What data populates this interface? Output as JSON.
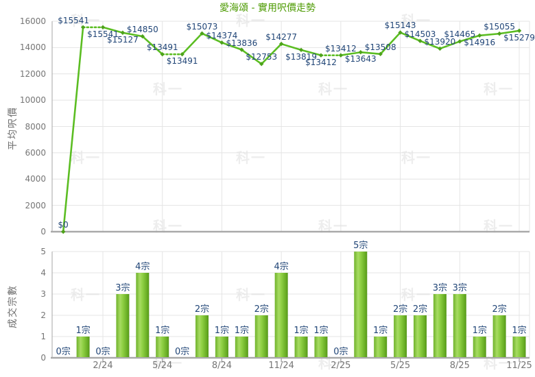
{
  "title": "愛海頌 - 實用呎價走勢",
  "watermark_text": "科一",
  "colors": {
    "title": "#4c9a01",
    "line": "#5bbd22",
    "marker": "#4da21a",
    "bar_light": "#a7db62",
    "bar_mid": "#8fd044",
    "bar_dark": "#68ad24",
    "bar_edge": "#55971a",
    "data_label": "#1f4476",
    "tick_label": "#757575",
    "axis_title": "#6e6e6e",
    "grid": "#e4e4e4",
    "axis": "#a9a9a9",
    "tick_mark": "#999999",
    "watermark": "#ededed"
  },
  "chart_data": [
    {
      "type": "line",
      "title": "愛海頌 - 實用呎價走勢",
      "ylabel": "平均呎價",
      "ylim": [
        0,
        16000
      ],
      "yticks": [
        "0",
        "2000",
        "4000",
        "6000",
        "8000",
        "10000",
        "12000",
        "14000",
        "16000"
      ],
      "grid": true,
      "legend": "none",
      "points": [
        {
          "value": 0,
          "label": "$0",
          "label_side": "above"
        },
        {
          "value": 15541,
          "label": "$15541",
          "label_side": "above",
          "label_dx": -14
        },
        {
          "value": 15541,
          "label": "$15541",
          "label_side": "below",
          "dotted_from_prev": true
        },
        {
          "value": 15127,
          "label": "$15127",
          "label_side": "below"
        },
        {
          "value": 14850,
          "label": "$14850",
          "label_side": "above"
        },
        {
          "value": 13491,
          "label": "$13491",
          "label_side": "above"
        },
        {
          "value": 13491,
          "label": "$13491",
          "label_side": "below",
          "dotted_from_prev": true
        },
        {
          "value": 15073,
          "label": "$15073",
          "label_side": "above"
        },
        {
          "value": 14374,
          "label": "$14374",
          "label_side": "above"
        },
        {
          "value": 13836,
          "label": "$13836",
          "label_side": "above"
        },
        {
          "value": 12753,
          "label": "$12753",
          "label_side": "above"
        },
        {
          "value": 14277,
          "label": "$14277",
          "label_side": "above"
        },
        {
          "value": 13819,
          "label": "$13819",
          "label_side": "below"
        },
        {
          "value": 13412,
          "label": "$13412",
          "label_side": "below"
        },
        {
          "value": 13412,
          "label": "$13412",
          "label_side": "above",
          "dotted_from_prev": true
        },
        {
          "value": 13643,
          "label": "$13643",
          "label_side": "below"
        },
        {
          "value": 13508,
          "label": "$13508",
          "label_side": "above"
        },
        {
          "value": 15143,
          "label": "$15143",
          "label_side": "above"
        },
        {
          "value": 14503,
          "label": "$14503",
          "label_side": "above"
        },
        {
          "value": 13920,
          "label": "$13920",
          "label_side": "above"
        },
        {
          "value": 14465,
          "label": "$14465",
          "label_side": "above"
        },
        {
          "value": 14916,
          "label": "$14916",
          "label_side": "below"
        },
        {
          "value": 15055,
          "label": "$15055",
          "label_side": "above"
        },
        {
          "value": 15279,
          "label": "$15279",
          "label_side": "below"
        }
      ]
    },
    {
      "type": "bar",
      "ylabel": "成交宗數",
      "ylim": [
        0,
        5
      ],
      "yticks": [
        "0",
        "1",
        "2",
        "3",
        "4",
        "5"
      ],
      "grid": true,
      "values": [
        0,
        1,
        0,
        3,
        4,
        1,
        0,
        2,
        1,
        1,
        2,
        4,
        1,
        1,
        0,
        5,
        1,
        2,
        2,
        3,
        3,
        1,
        2,
        1
      ],
      "bar_labels": [
        "0宗",
        "1宗",
        "0宗",
        "3宗",
        "4宗",
        "1宗",
        "0宗",
        "2宗",
        "1宗",
        "1宗",
        "2宗",
        "4宗",
        "1宗",
        "1宗",
        "0宗",
        "5宗",
        "1宗",
        "2宗",
        "2宗",
        "3宗",
        "3宗",
        "1宗",
        "2宗",
        "1宗"
      ],
      "x_ticklabels": [
        "2/24",
        "5/24",
        "8/24",
        "11/24",
        "2/25",
        "5/25",
        "8/25",
        "11/25"
      ],
      "x_tick_indices": [
        2,
        5,
        8,
        11,
        14,
        17,
        20,
        23
      ]
    }
  ]
}
